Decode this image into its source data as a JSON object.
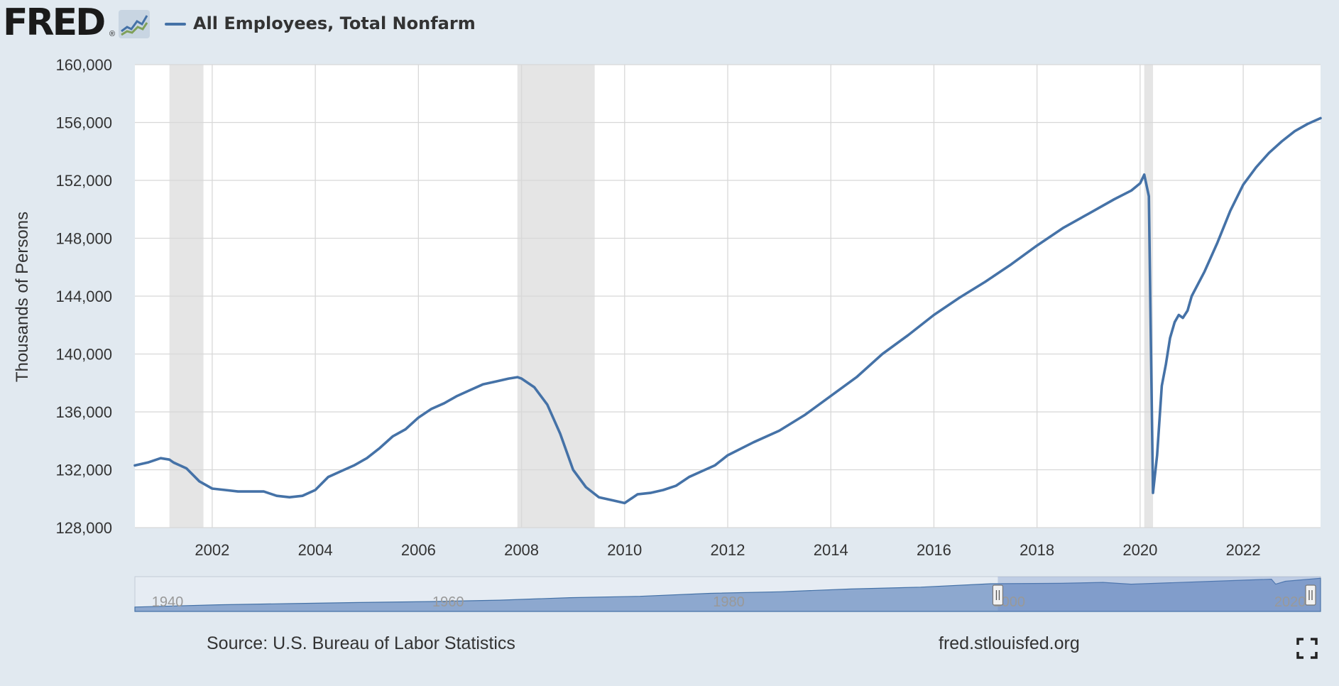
{
  "header": {
    "logo_text": "FRED",
    "logo_registered": "®",
    "series_title": "All Employees, Total Nonfarm"
  },
  "footer": {
    "source": "Source: U.S. Bureau of Labor Statistics",
    "site": "fred.stlouisfed.org"
  },
  "colors": {
    "series_line": "#4572a7",
    "recession_band": "#e5e5e5",
    "page_background": "#e1e9f0",
    "plot_background": "#ffffff",
    "navigator_fill": "#7d9cc8"
  },
  "icons": [
    "fred-graph-icon",
    "fullscreen-icon"
  ],
  "chart_data": {
    "type": "line",
    "title": "All Employees, Total Nonfarm",
    "ylabel": "Thousands of Persons",
    "xlabel": "",
    "ylim": [
      128000,
      160000
    ],
    "yticks": [
      128000,
      132000,
      136000,
      140000,
      144000,
      148000,
      152000,
      156000,
      160000
    ],
    "ytick_labels": [
      "128,000",
      "132,000",
      "136,000",
      "140,000",
      "144,000",
      "148,000",
      "152,000",
      "156,000",
      "160,000"
    ],
    "xlim": [
      2000.5,
      2023.5
    ],
    "xticks": [
      2002,
      2004,
      2006,
      2008,
      2010,
      2012,
      2014,
      2016,
      2018,
      2020,
      2022
    ],
    "xtick_labels": [
      "2002",
      "2004",
      "2006",
      "2008",
      "2010",
      "2012",
      "2014",
      "2016",
      "2018",
      "2020",
      "2022"
    ],
    "grid": true,
    "legend": "top-left",
    "recessions": [
      [
        2001.17,
        2001.83
      ],
      [
        2007.92,
        2009.42
      ],
      [
        2020.08,
        2020.25
      ]
    ],
    "series": [
      {
        "name": "All Employees, Total Nonfarm",
        "x": [
          2000.5,
          2000.75,
          2001.0,
          2001.17,
          2001.25,
          2001.5,
          2001.75,
          2002.0,
          2002.25,
          2002.5,
          2002.75,
          2003.0,
          2003.25,
          2003.5,
          2003.75,
          2004.0,
          2004.25,
          2004.5,
          2004.75,
          2005.0,
          2005.25,
          2005.5,
          2005.75,
          2006.0,
          2006.25,
          2006.5,
          2006.75,
          2007.0,
          2007.25,
          2007.5,
          2007.75,
          2007.92,
          2008.0,
          2008.25,
          2008.5,
          2008.75,
          2009.0,
          2009.25,
          2009.5,
          2009.75,
          2010.0,
          2010.25,
          2010.5,
          2010.75,
          2011.0,
          2011.25,
          2011.5,
          2011.75,
          2012.0,
          2012.5,
          2013.0,
          2013.5,
          2014.0,
          2014.5,
          2015.0,
          2015.5,
          2016.0,
          2016.5,
          2017.0,
          2017.5,
          2018.0,
          2018.5,
          2019.0,
          2019.5,
          2019.83,
          2020.0,
          2020.08,
          2020.17,
          2020.25,
          2020.33,
          2020.42,
          2020.5,
          2020.58,
          2020.67,
          2020.75,
          2020.83,
          2020.92,
          2021.0,
          2021.25,
          2021.5,
          2021.75,
          2022.0,
          2022.25,
          2022.5,
          2022.75,
          2023.0,
          2023.25,
          2023.5
        ],
        "values": [
          132300,
          132500,
          132800,
          132700,
          132500,
          132100,
          131200,
          130700,
          130600,
          130500,
          130500,
          130500,
          130200,
          130100,
          130200,
          130600,
          131500,
          131900,
          132300,
          132800,
          133500,
          134300,
          134800,
          135600,
          136200,
          136600,
          137100,
          137500,
          137900,
          138100,
          138300,
          138400,
          138300,
          137700,
          136500,
          134500,
          132000,
          130800,
          130100,
          129900,
          129700,
          130300,
          130400,
          130600,
          130900,
          131500,
          131900,
          132300,
          133000,
          133900,
          134700,
          135800,
          137100,
          138400,
          140000,
          141300,
          142700,
          143900,
          145000,
          146200,
          147500,
          148700,
          149700,
          150700,
          151300,
          151800,
          152400,
          150900,
          130400,
          133000,
          137800,
          139300,
          141100,
          142200,
          142700,
          142500,
          143000,
          144000,
          145700,
          147700,
          149900,
          151700,
          152900,
          153900,
          154700,
          155400,
          155900,
          156300
        ]
      }
    ],
    "navigator": {
      "tick_labels": [
        "1940",
        "1960",
        "1980",
        "2000",
        "2020"
      ]
    }
  }
}
